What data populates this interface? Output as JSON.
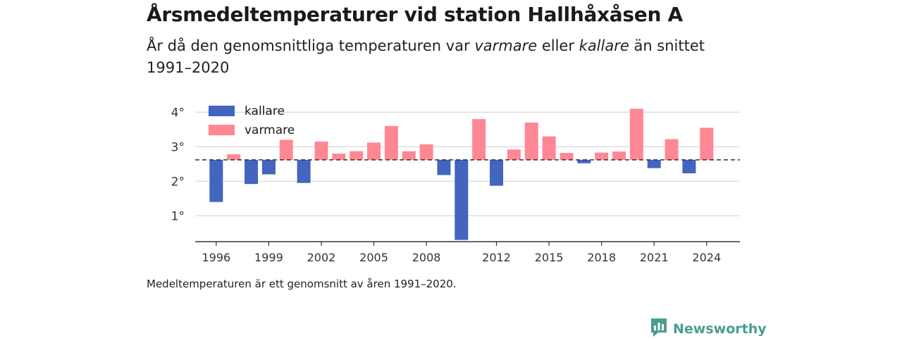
{
  "header": {
    "title": "Årsmedeltemperaturer vid station Hallhåxåsen A",
    "subtitle_pre": "År då den genomsnittliga temperaturen var ",
    "subtitle_warm": "varmare",
    "subtitle_mid": " eller ",
    "subtitle_cold": "kallare",
    "subtitle_post": " än snittet 1991–2020"
  },
  "footer": {
    "note": "Medeltemperaturen är ett genomsnitt av åren 1991–2020.",
    "brand": "Newsworthy"
  },
  "colors": {
    "kallare": "#4364bf",
    "varmare": "#ff8794",
    "grid": "#d9d9d9",
    "axis": "#333333",
    "brand": "#4a9d8f"
  },
  "chart_data": {
    "type": "bar",
    "title": "Årsmedeltemperaturer vid station Hallhåxåsen A",
    "baseline": 2.62,
    "ylim": [
      0.25,
      4.25
    ],
    "yticks": [
      1,
      2,
      3,
      4
    ],
    "ytick_labels": [
      "1°",
      "2°",
      "3°",
      "4°"
    ],
    "xticks": [
      1996,
      1999,
      2002,
      2005,
      2008,
      2012,
      2015,
      2018,
      2021,
      2024
    ],
    "xlim": [
      1994.8,
      2025.9
    ],
    "grid": true,
    "legend_position": "top-left",
    "legend": [
      {
        "key": "kallare",
        "label": "kallare"
      },
      {
        "key": "varmare",
        "label": "varmare"
      }
    ],
    "years": [
      1996,
      1997,
      1998,
      1999,
      2000,
      2001,
      2002,
      2003,
      2004,
      2005,
      2006,
      2007,
      2008,
      2009,
      2010,
      2011,
      2012,
      2013,
      2014,
      2015,
      2016,
      2017,
      2018,
      2019,
      2020,
      2021,
      2022,
      2023,
      2024
    ],
    "values": [
      1.4,
      2.78,
      1.92,
      2.2,
      3.2,
      1.95,
      3.15,
      2.8,
      2.87,
      3.12,
      3.6,
      2.87,
      3.07,
      2.18,
      0.3,
      3.8,
      1.87,
      2.92,
      3.7,
      3.3,
      2.82,
      2.52,
      2.83,
      2.86,
      4.1,
      2.38,
      3.22,
      2.23,
      3.55
    ]
  }
}
